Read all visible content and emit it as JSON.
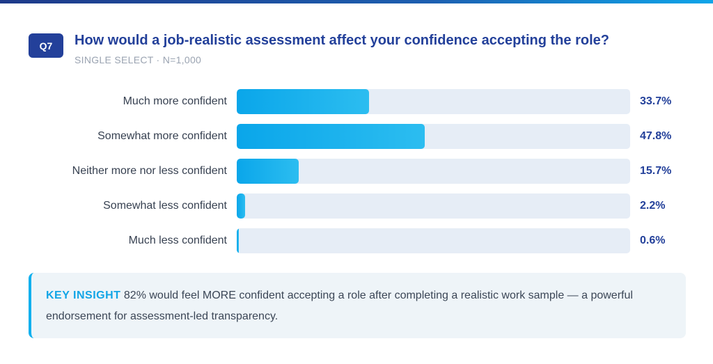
{
  "header": {
    "badge": "Q7",
    "title": "How would a job-realistic assessment affect your confidence accepting the role?",
    "subtitle": "SINGLE SELECT · N=1,000"
  },
  "chart_data": {
    "type": "bar",
    "orientation": "horizontal",
    "title": "How would a job-realistic assessment affect your confidence accepting the role?",
    "categories": [
      "Much more confident",
      "Somewhat more confident",
      "Neither more nor less confident",
      "Somewhat less confident",
      "Much less confident"
    ],
    "values": [
      33.7,
      47.8,
      15.7,
      2.2,
      0.6
    ],
    "value_labels": [
      "33.7%",
      "47.8%",
      "15.7%",
      "2.2%",
      "0.6%"
    ],
    "xlim": [
      0,
      100
    ],
    "unit": "%",
    "grid": false,
    "colors": {
      "bar": "#0aa6ea",
      "track": "#e6edf6",
      "value": "#23409a"
    }
  },
  "insight": {
    "label": "KEY INSIGHT",
    "text": "82% would feel MORE confident accepting a role after completing a realistic work sample — a powerful endorsement for assessment-led transparency."
  },
  "colors": {
    "accent": "#23409a",
    "highlight": "#12b0ee"
  }
}
